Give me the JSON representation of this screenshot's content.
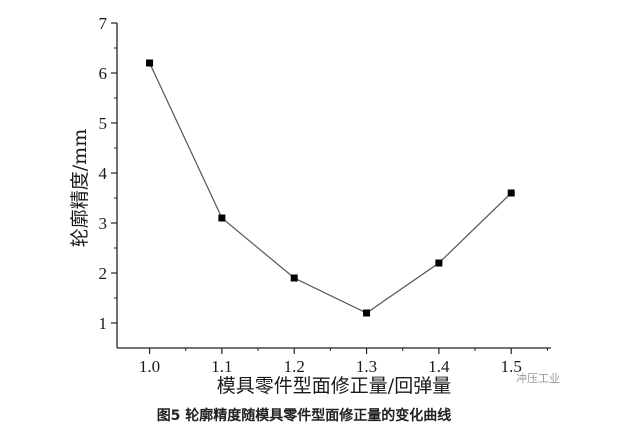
{
  "chart_data": {
    "type": "line",
    "title": "",
    "xlabel": "模具零件型面修正量/回弹量",
    "ylabel": "轮廓精度/mm",
    "x": [
      1.0,
      1.1,
      1.2,
      1.3,
      1.4,
      1.5
    ],
    "x_tick_labels": [
      "1.0",
      "1.1",
      "1.2",
      "1.3",
      "1.4",
      "1.5"
    ],
    "y_tick_labels": [
      "1",
      "2",
      "3",
      "4",
      "5",
      "6",
      "7"
    ],
    "y_ticks": [
      1,
      2,
      3,
      4,
      5,
      6,
      7
    ],
    "xlim": [
      0.955,
      1.555
    ],
    "ylim": [
      0.5,
      7
    ],
    "series": [
      {
        "values": [
          6.2,
          3.1,
          1.9,
          1.2,
          2.2,
          3.6
        ],
        "color": "#555555",
        "marker": "square"
      }
    ],
    "grid": false,
    "legend": "none"
  },
  "caption": "图5 轮廓精度随模具零件型面修正量的变化曲线",
  "watermark": "冲压工业",
  "colors": {
    "axis": "#222222",
    "line": "#555555",
    "marker": "#000000"
  }
}
